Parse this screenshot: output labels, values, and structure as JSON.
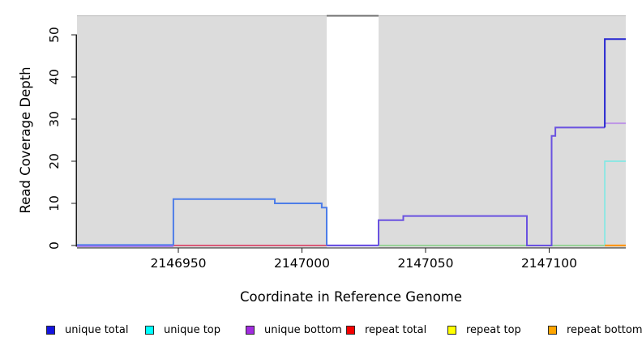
{
  "colors": {
    "page_bg": "#ffffff",
    "plot_bg_unique": "#dcdcdc",
    "axis": "#1c1c1c",
    "text": "#000000",
    "gap_top_border": "#6f6f6f",
    "bg_top_edge": "#b8b8b8"
  },
  "chart_data": {
    "type": "line",
    "subtype": "step-post",
    "title": "",
    "xlabel": "Coordinate in Reference Genome",
    "ylabel": "Read Coverage Depth",
    "xlim": [
      2146909,
      2147131
    ],
    "ylim": [
      0,
      54.6
    ],
    "y_axis_range_shown": [
      0,
      50
    ],
    "grid": false,
    "x_ticks": [
      2146950,
      2147000,
      2147050,
      2147100
    ],
    "x_tick_labels": [
      "2146950",
      "2147000",
      "2147050",
      "2147100"
    ],
    "y_ticks": [
      0,
      10,
      20,
      30,
      40,
      50
    ],
    "y_tick_labels": [
      "0",
      "10",
      "20",
      "30",
      "40",
      "50"
    ],
    "regions": {
      "unique_shaded": [
        [
          2146909,
          2147010
        ],
        [
          2147031,
          2147131
        ]
      ],
      "white_gap": [
        2147010,
        2147031
      ]
    },
    "series": [
      {
        "name": "unique total",
        "color": "#0000ff",
        "points": [
          [
            2146909,
            0
          ],
          [
            2146948,
            11
          ],
          [
            2146989,
            10
          ],
          [
            2147008,
            9
          ],
          [
            2147010,
            0
          ],
          [
            2147031,
            6
          ],
          [
            2147041,
            7
          ],
          [
            2147091,
            0
          ],
          [
            2147101,
            26
          ],
          [
            2147102.5,
            28
          ],
          [
            2147122.5,
            49
          ],
          [
            2147131,
            49
          ]
        ]
      },
      {
        "name": "unique top",
        "color": "#00ffff",
        "points": [
          [
            2146909,
            0
          ],
          [
            2147122.5,
            20
          ],
          [
            2147131,
            20
          ]
        ]
      },
      {
        "name": "unique bottom",
        "color": "#a020f0",
        "points": [
          [
            2146909,
            0
          ],
          [
            2147031,
            6
          ],
          [
            2147041,
            7
          ],
          [
            2147091,
            0
          ],
          [
            2147101,
            26
          ],
          [
            2147102.5,
            28
          ],
          [
            2147122.5,
            29
          ],
          [
            2147131,
            29
          ]
        ]
      },
      {
        "name": "repeat total",
        "color": "#ff0000",
        "points": [
          [
            2146948,
            0
          ],
          [
            2147010,
            0
          ]
        ]
      },
      {
        "name": "repeat top",
        "color": "#ffff00",
        "points": [
          [
            2147031,
            0
          ],
          [
            2147122.5,
            0
          ]
        ]
      },
      {
        "name": "repeat bottom",
        "color": "#ffa500",
        "points": [
          [
            2147122.5,
            0
          ],
          [
            2147131,
            0
          ]
        ]
      }
    ],
    "drawn_segments": [
      {
        "id": "repeat-total-baseline",
        "color": "#d9486a",
        "width": 1.8,
        "dy": 0,
        "points": [
          [
            2146948,
            0
          ],
          [
            2147010,
            0
          ]
        ]
      },
      {
        "id": "top-baseline-green-blend",
        "color": "#8fd08f",
        "width": 1.7,
        "dy": 0,
        "points": [
          [
            2147031,
            0
          ],
          [
            2147122.5,
            0
          ]
        ]
      },
      {
        "id": "unique-bottom-left-baseline",
        "color": "#9a6cf0",
        "width": 2,
        "dy": 0.7,
        "points": [
          [
            2146909,
            0
          ],
          [
            2146948,
            0
          ]
        ]
      },
      {
        "id": "unique-total-left-baseline",
        "color": "#4d7de8",
        "width": 1.6,
        "dy": -0.8,
        "points": [
          [
            2146909,
            0
          ],
          [
            2146948,
            0
          ]
        ]
      },
      {
        "id": "gap-baseline-blend",
        "color": "#6a52e0",
        "width": 2.2,
        "dy": 0,
        "points": [
          [
            2147010,
            0
          ],
          [
            2147031,
            0
          ]
        ]
      },
      {
        "id": "unique-total-left-plateau",
        "color": "#4d7de8",
        "width": 2,
        "dy": 0,
        "points": [
          [
            2146948,
            0
          ],
          [
            2146948,
            11
          ],
          [
            2146989,
            11
          ],
          [
            2146989,
            10
          ],
          [
            2147008,
            10
          ],
          [
            2147008,
            9
          ],
          [
            2147010,
            9
          ],
          [
            2147010,
            0
          ]
        ]
      },
      {
        "id": "unique-mid-steps-blend",
        "color": "#6a52e0",
        "width": 2,
        "dy": 0,
        "points": [
          [
            2147031,
            0
          ],
          [
            2147031,
            6
          ],
          [
            2147041,
            6
          ],
          [
            2147041,
            7
          ],
          [
            2147091,
            7
          ],
          [
            2147091,
            0
          ],
          [
            2147101,
            0
          ],
          [
            2147101,
            26
          ],
          [
            2147102.5,
            26
          ],
          [
            2147102.5,
            28
          ],
          [
            2147122.5,
            28
          ]
        ]
      },
      {
        "id": "unique-bottom-right",
        "color": "#bd93e6",
        "width": 1.8,
        "dy": 0,
        "points": [
          [
            2147122.5,
            29
          ],
          [
            2147131,
            29
          ]
        ]
      },
      {
        "id": "unique-top-right",
        "color": "#82e8e4",
        "width": 1.7,
        "dy": 0,
        "points": [
          [
            2147122.5,
            0
          ],
          [
            2147122.5,
            20
          ],
          [
            2147131,
            20
          ]
        ]
      },
      {
        "id": "repeat-bottom-right",
        "color": "#ff9718",
        "width": 2.2,
        "dy": 0,
        "points": [
          [
            2147122.5,
            0
          ],
          [
            2147131,
            0
          ]
        ]
      },
      {
        "id": "unique-total-right",
        "color": "#2626d2",
        "width": 2,
        "dy": 0,
        "points": [
          [
            2147122.5,
            28
          ],
          [
            2147122.5,
            49
          ],
          [
            2147131,
            49
          ]
        ]
      }
    ],
    "legend_position": "bottom"
  },
  "legend": {
    "items": [
      {
        "label": "unique total",
        "color": "#1414e0"
      },
      {
        "label": "unique top",
        "color": "#00ffff"
      },
      {
        "label": "unique bottom",
        "color": "#a22ce0"
      },
      {
        "label": "repeat total",
        "color": "#f50000"
      },
      {
        "label": "repeat top",
        "color": "#ffff00"
      },
      {
        "label": "repeat bottom",
        "color": "#ffa500"
      }
    ]
  }
}
